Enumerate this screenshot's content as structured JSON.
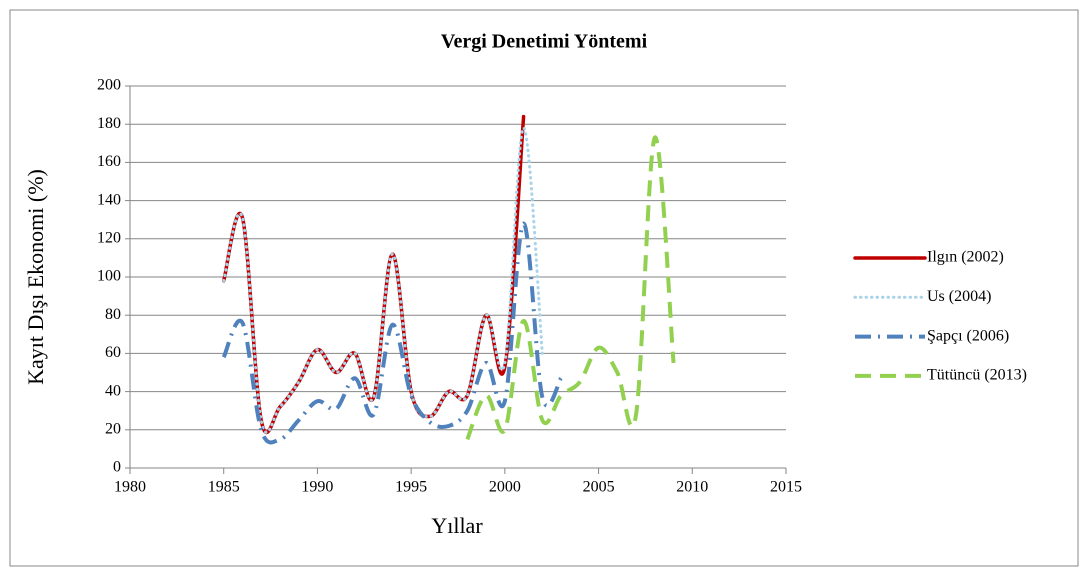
{
  "chart_data": {
    "type": "line",
    "title": "Vergi Denetimi Yöntemi",
    "x_label": "Yıllar",
    "y_label": "Kayıt Dışı Ekonomi (%)",
    "x": [
      1985,
      1986,
      1987,
      1988,
      1989,
      1990,
      1991,
      1992,
      1993,
      1994,
      1995,
      1996,
      1997,
      1998,
      1999,
      2000,
      2001,
      2002,
      2003,
      2004,
      2005,
      2006,
      2007,
      2008,
      2009
    ],
    "series": [
      {
        "name": "Ilgın (2002)",
        "color": "#c00000",
        "style": "solid",
        "values": [
          98,
          131,
          25,
          32,
          45,
          62,
          50,
          60,
          37,
          112,
          40,
          27,
          40,
          38,
          80,
          53,
          184,
          null,
          null,
          null,
          null,
          null,
          null,
          null,
          null
        ]
      },
      {
        "name": "Us (2004)",
        "color": "#a9d3ea",
        "style": "dotted",
        "values": [
          98,
          131,
          25,
          32,
          45,
          62,
          50,
          60,
          37,
          112,
          40,
          27,
          40,
          38,
          80,
          55,
          178,
          60,
          null,
          null,
          null,
          null,
          null,
          null,
          null
        ]
      },
      {
        "name": "Şapçı (2006)",
        "color": "#4f81bd",
        "style": "dash-dot",
        "values": [
          58,
          76,
          20,
          15,
          25,
          35,
          31,
          47,
          28,
          75,
          38,
          24,
          22,
          30,
          55,
          35,
          128,
          37,
          47,
          null,
          null,
          null,
          null,
          null,
          null
        ]
      },
      {
        "name": "Tütüncü (2013)",
        "color": "#92d050",
        "style": "dashed",
        "values": [
          null,
          null,
          null,
          null,
          null,
          null,
          null,
          null,
          null,
          null,
          null,
          null,
          null,
          15,
          38,
          20,
          77,
          25,
          38,
          45,
          63,
          50,
          28,
          173,
          55
        ]
      }
    ],
    "xlim": [
      1980,
      2015
    ],
    "xticks": [
      1980,
      1985,
      1990,
      1995,
      2000,
      2005,
      2010,
      2015
    ],
    "ylim": [
      0,
      200
    ],
    "yticks": [
      0,
      20,
      40,
      60,
      80,
      100,
      120,
      140,
      160,
      180,
      200
    ],
    "grid": true,
    "legend": "right"
  }
}
